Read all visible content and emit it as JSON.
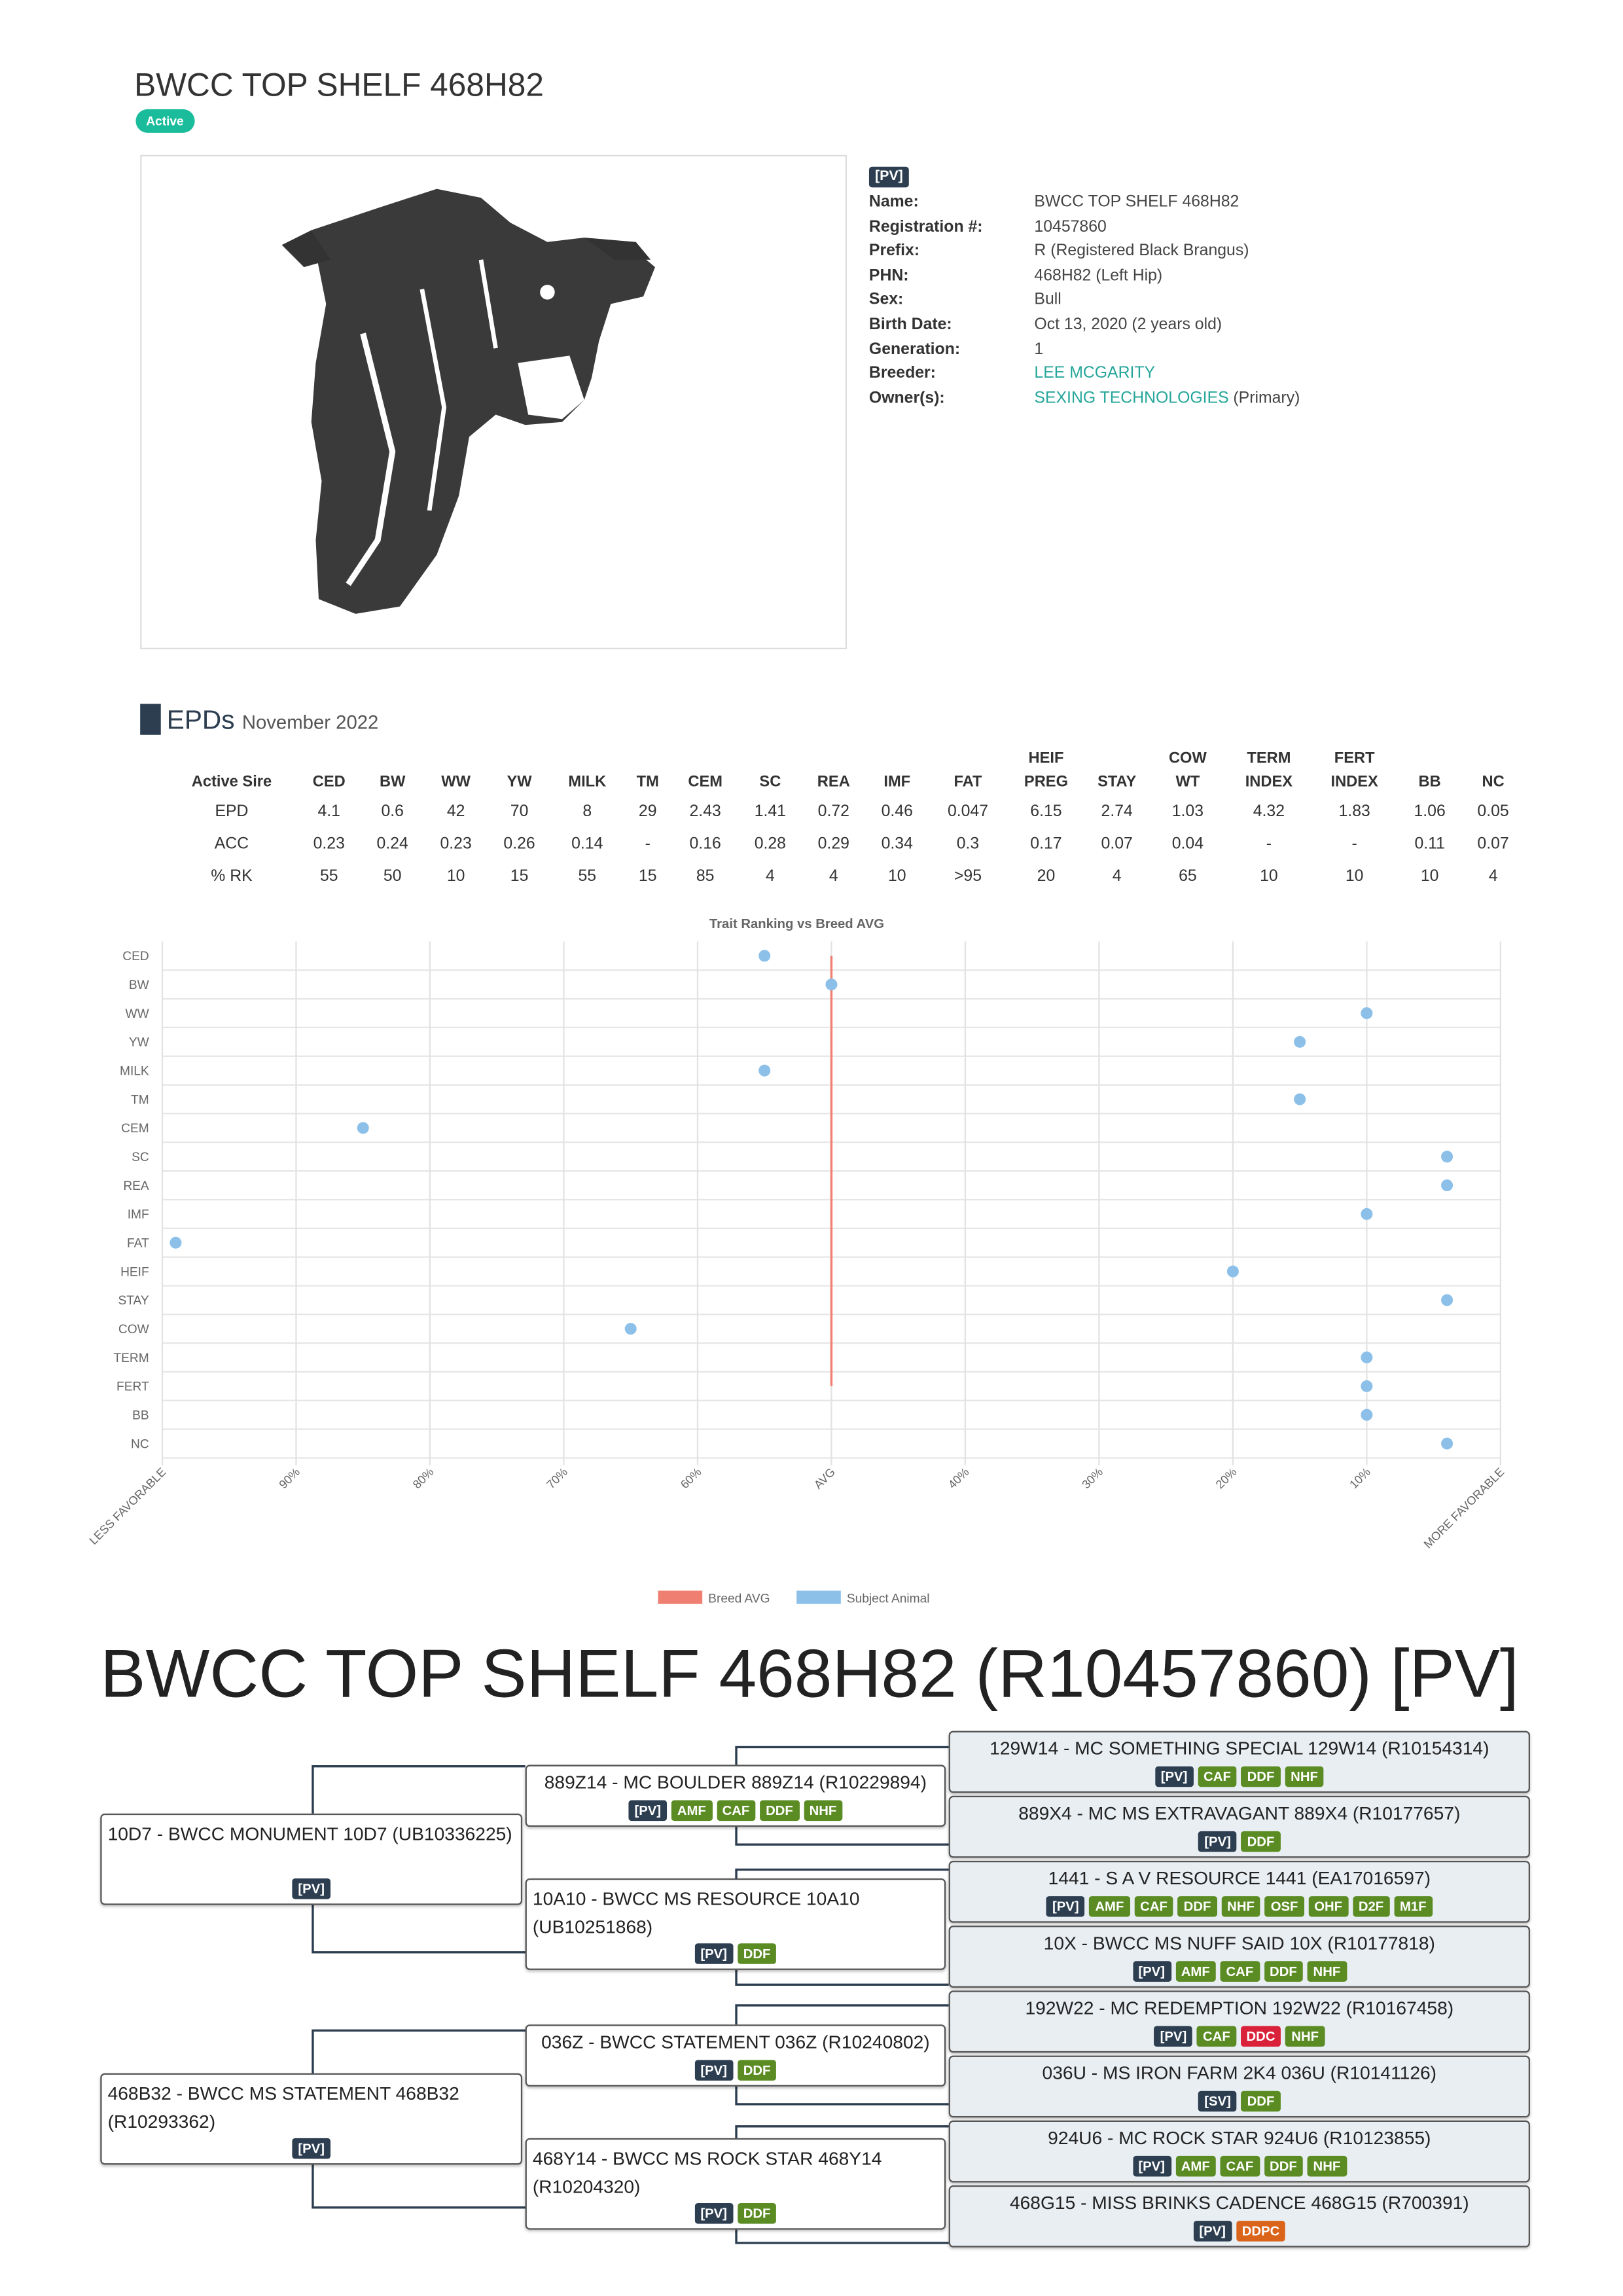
{
  "header": {
    "title": "BWCC TOP SHELF 468H82",
    "status": "Active"
  },
  "info": {
    "badge": "[PV]",
    "rows": [
      {
        "label": "Name:",
        "value": "BWCC TOP SHELF 468H82"
      },
      {
        "label": "Registration #:",
        "value": "10457860"
      },
      {
        "label": "Prefix:",
        "value": "R (Registered Black Brangus)"
      },
      {
        "label": "PHN:",
        "value": "468H82 (Left Hip)"
      },
      {
        "label": "Sex:",
        "value": "Bull"
      },
      {
        "label": "Birth Date:",
        "value": "Oct 13, 2020 (2 years old)"
      },
      {
        "label": "Generation:",
        "value": "1"
      },
      {
        "label": "Breeder:",
        "value": "LEE MCGARITY"
      },
      {
        "label": "Owner(s):",
        "value": "SEXING TECHNOLOGIES",
        "note": "(Primary)"
      }
    ]
  },
  "epds": {
    "title": "EPDs",
    "date": "November 2022",
    "columns": [
      "Active Sire",
      "CED",
      "BW",
      "WW",
      "YW",
      "MILK",
      "TM",
      "CEM",
      "SC",
      "REA",
      "IMF",
      "FAT",
      "HEIF PREG",
      "STAY",
      "COW WT",
      "TERM INDEX",
      "FERT INDEX",
      "BB",
      "NC"
    ],
    "rows": [
      {
        "label": "EPD",
        "values": [
          "4.1",
          "0.6",
          "42",
          "70",
          "8",
          "29",
          "2.43",
          "1.41",
          "0.72",
          "0.46",
          "0.047",
          "6.15",
          "2.74",
          "1.03",
          "4.32",
          "1.83",
          "1.06",
          "0.05"
        ]
      },
      {
        "label": "ACC",
        "values": [
          "0.23",
          "0.24",
          "0.23",
          "0.26",
          "0.14",
          "-",
          "0.16",
          "0.28",
          "0.29",
          "0.34",
          "0.3",
          "0.17",
          "0.07",
          "0.04",
          "-",
          "-",
          "0.11",
          "0.07"
        ]
      },
      {
        "label": "% RK",
        "values": [
          "55",
          "50",
          "10",
          "15",
          "55",
          "15",
          "85",
          "4",
          "4",
          "10",
          ">95",
          "20",
          "4",
          "65",
          "10",
          "10",
          "10",
          "4"
        ]
      }
    ]
  },
  "chart_data": {
    "type": "dot",
    "title": "Trait Ranking vs Breed AVG",
    "categories": [
      "CED",
      "BW",
      "WW",
      "YW",
      "MILK",
      "TM",
      "CEM",
      "SC",
      "REA",
      "IMF",
      "FAT",
      "HEIF",
      "STAY",
      "COW",
      "TERM",
      "FERT",
      "BB",
      "NC"
    ],
    "xlim": [
      100,
      0
    ],
    "xticks": [
      {
        "value": 100,
        "label": "LESS FAVORABLE"
      },
      {
        "value": 90,
        "label": "90%"
      },
      {
        "value": 80,
        "label": "80%"
      },
      {
        "value": 70,
        "label": "70%"
      },
      {
        "value": 60,
        "label": "60%"
      },
      {
        "value": 50,
        "label": "AVG"
      },
      {
        "value": 40,
        "label": "40%"
      },
      {
        "value": 30,
        "label": "30%"
      },
      {
        "value": 20,
        "label": "20%"
      },
      {
        "value": 10,
        "label": "10%"
      },
      {
        "value": 0,
        "label": "MORE FAVORABLE"
      }
    ],
    "grid": true,
    "series": [
      {
        "name": "Breed AVG",
        "type": "line",
        "color": "#ef7f70",
        "values": [
          50,
          50,
          50,
          50,
          50,
          50,
          50,
          50,
          50,
          50,
          50,
          50,
          50,
          50,
          50,
          50,
          null,
          null
        ]
      },
      {
        "name": "Subject Animal",
        "type": "scatter",
        "color": "#8cc0e9",
        "values": [
          55,
          50,
          10,
          15,
          55,
          15,
          85,
          4,
          4,
          10,
          99,
          20,
          4,
          65,
          10,
          10,
          10,
          4
        ]
      }
    ]
  },
  "pedigree": {
    "title": "BWCC TOP SHELF 468H82 (R10457860) [PV]",
    "nodes": [
      {
        "text": "10D7 - BWCC MONUMENT 10D7 (UB10336225)",
        "tags": [
          {
            "label": "[PV]",
            "color": "#2c3e50"
          }
        ]
      },
      {
        "text": "468B32 - BWCC MS STATEMENT 468B32 (R10293362)",
        "tags": [
          {
            "label": "[PV]",
            "color": "#2c3e50"
          }
        ]
      },
      {
        "text": "889Z14 - MC BOULDER 889Z14 (R10229894)",
        "tags": [
          {
            "label": "[PV]",
            "color": "#2c3e50"
          },
          {
            "label": "AMF",
            "color": "#5b8c24"
          },
          {
            "label": "CAF",
            "color": "#5b8c24"
          },
          {
            "label": "DDF",
            "color": "#5b8c24"
          },
          {
            "label": "NHF",
            "color": "#5b8c24"
          }
        ]
      },
      {
        "text": "10A10 - BWCC MS RESOURCE 10A10 (UB10251868)",
        "tags": [
          {
            "label": "[PV]",
            "color": "#2c3e50"
          },
          {
            "label": "DDF",
            "color": "#5b8c24"
          }
        ]
      },
      {
        "text": "036Z - BWCC STATEMENT 036Z (R10240802)",
        "tags": [
          {
            "label": "[PV]",
            "color": "#2c3e50"
          },
          {
            "label": "DDF",
            "color": "#5b8c24"
          }
        ]
      },
      {
        "text": "468Y14 - BWCC MS ROCK STAR 468Y14 (R10204320)",
        "tags": [
          {
            "label": "[PV]",
            "color": "#2c3e50"
          },
          {
            "label": "DDF",
            "color": "#5b8c24"
          }
        ]
      },
      {
        "text": "129W14 - MC SOMETHING SPECIAL 129W14 (R10154314)",
        "tags": [
          {
            "label": "[PV]",
            "color": "#2c3e50"
          },
          {
            "label": "CAF",
            "color": "#5b8c24"
          },
          {
            "label": "DDF",
            "color": "#5b8c24"
          },
          {
            "label": "NHF",
            "color": "#5b8c24"
          }
        ]
      },
      {
        "text": "889X4 - MC MS EXTRAVAGANT 889X4 (R10177657)",
        "tags": [
          {
            "label": "[PV]",
            "color": "#2c3e50"
          },
          {
            "label": "DDF",
            "color": "#5b8c24"
          }
        ]
      },
      {
        "text": "1441 - S A V RESOURCE 1441 (EA17016597)",
        "tags": [
          {
            "label": "[PV]",
            "color": "#2c3e50"
          },
          {
            "label": "AMF",
            "color": "#5b8c24"
          },
          {
            "label": "CAF",
            "color": "#5b8c24"
          },
          {
            "label": "DDF",
            "color": "#5b8c24"
          },
          {
            "label": "NHF",
            "color": "#5b8c24"
          },
          {
            "label": "OSF",
            "color": "#5b8c24"
          },
          {
            "label": "OHF",
            "color": "#5b8c24"
          },
          {
            "label": "D2F",
            "color": "#5b8c24"
          },
          {
            "label": "M1F",
            "color": "#5b8c24"
          }
        ]
      },
      {
        "text": "10X - BWCC MS NUFF SAID 10X (R10177818)",
        "tags": [
          {
            "label": "[PV]",
            "color": "#2c3e50"
          },
          {
            "label": "AMF",
            "color": "#5b8c24"
          },
          {
            "label": "CAF",
            "color": "#5b8c24"
          },
          {
            "label": "DDF",
            "color": "#5b8c24"
          },
          {
            "label": "NHF",
            "color": "#5b8c24"
          }
        ]
      },
      {
        "text": "192W22 - MC REDEMPTION 192W22 (R10167458)",
        "tags": [
          {
            "label": "[PV]",
            "color": "#2c3e50"
          },
          {
            "label": "CAF",
            "color": "#5b8c24"
          },
          {
            "label": "DDC",
            "color": "#d9213a"
          },
          {
            "label": "NHF",
            "color": "#5b8c24"
          }
        ]
      },
      {
        "text": "036U - MS IRON FARM 2K4 036U (R10141126)",
        "tags": [
          {
            "label": "[SV]",
            "color": "#2c3e50"
          },
          {
            "label": "DDF",
            "color": "#5b8c24"
          }
        ]
      },
      {
        "text": "924U6 - MC ROCK STAR 924U6 (R10123855)",
        "tags": [
          {
            "label": "[PV]",
            "color": "#2c3e50"
          },
          {
            "label": "AMF",
            "color": "#5b8c24"
          },
          {
            "label": "CAF",
            "color": "#5b8c24"
          },
          {
            "label": "DDF",
            "color": "#5b8c24"
          },
          {
            "label": "NHF",
            "color": "#5b8c24"
          }
        ]
      },
      {
        "text": "468G15 - MISS BRINKS CADENCE 468G15 (R700391)",
        "tags": [
          {
            "label": "[PV]",
            "color": "#2c3e50"
          },
          {
            "label": "DDPC",
            "color": "#d9641a"
          }
        ]
      }
    ]
  }
}
